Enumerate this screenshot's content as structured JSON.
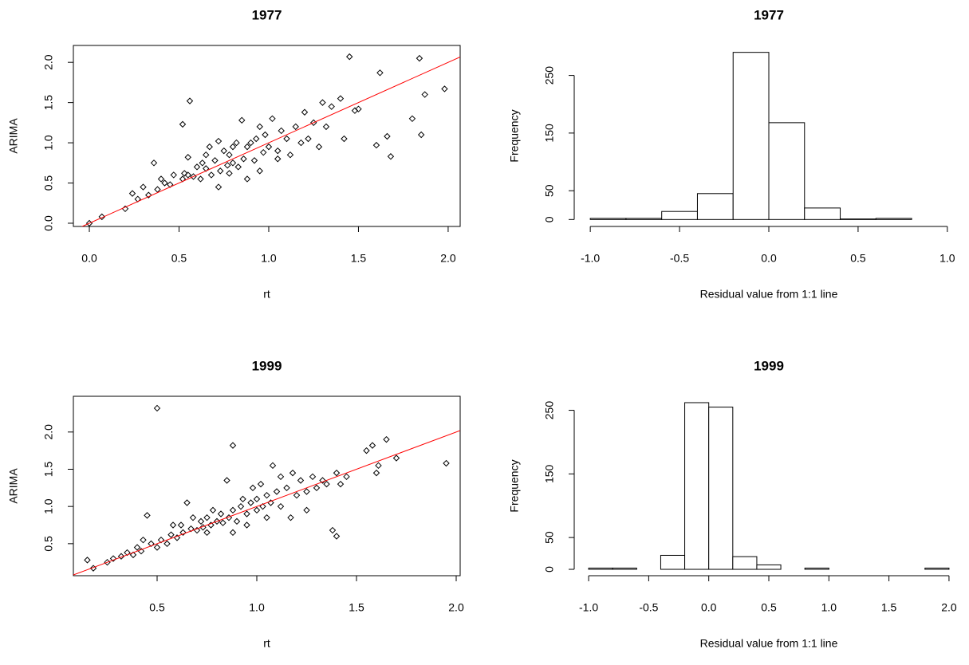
{
  "chart_data": [
    {
      "type": "scatter",
      "title": "1977",
      "xlabel": "rt",
      "ylabel": "ARIMA",
      "color": "#000000",
      "x": [
        0.0,
        0.07,
        0.2,
        0.24,
        0.27,
        0.3,
        0.33,
        0.36,
        0.38,
        0.4,
        0.42,
        0.45,
        0.47,
        0.52,
        0.52,
        0.53,
        0.55,
        0.56,
        0.58,
        0.6,
        0.62,
        0.63,
        0.65,
        0.67,
        0.68,
        0.7,
        0.72,
        0.73,
        0.75,
        0.77,
        0.78,
        0.8,
        0.82,
        0.83,
        0.85,
        0.86,
        0.88,
        0.9,
        0.92,
        0.93,
        0.95,
        0.97,
        0.98,
        1.0,
        1.02,
        1.05,
        1.07,
        1.1,
        1.12,
        1.15,
        1.18,
        1.2,
        1.22,
        1.25,
        1.28,
        1.3,
        1.32,
        1.35,
        1.4,
        1.42,
        1.45,
        1.48,
        1.5,
        1.6,
        1.62,
        1.66,
        1.68,
        1.8,
        1.84,
        1.85,
        1.87,
        1.98,
        0.72,
        0.78,
        0.88,
        0.95,
        1.05,
        0.65,
        0.55,
        0.8
      ],
      "values": [
        0.0,
        0.08,
        0.18,
        0.37,
        0.3,
        0.45,
        0.35,
        0.75,
        0.42,
        0.55,
        0.5,
        0.48,
        0.6,
        1.23,
        0.55,
        0.62,
        0.82,
        1.52,
        0.58,
        0.7,
        0.55,
        0.75,
        0.68,
        0.95,
        0.6,
        0.78,
        1.02,
        0.65,
        0.9,
        0.72,
        0.85,
        0.95,
        1.0,
        0.7,
        1.28,
        0.8,
        0.95,
        1.0,
        0.78,
        1.05,
        1.2,
        0.88,
        1.1,
        0.95,
        1.3,
        0.9,
        1.15,
        1.05,
        0.85,
        1.2,
        1.0,
        1.38,
        1.05,
        1.25,
        0.95,
        1.5,
        1.2,
        1.45,
        1.55,
        1.05,
        2.07,
        1.4,
        1.42,
        0.97,
        1.87,
        1.08,
        0.83,
        1.3,
        2.05,
        1.1,
        1.6,
        1.67,
        0.45,
        0.62,
        0.55,
        0.65,
        0.8,
        0.85,
        0.6,
        0.75
      ],
      "abline": {
        "intercept": 0,
        "slope": 1,
        "color": "#ff0000"
      },
      "xlim": [
        -0.089,
        2.067
      ],
      "ylim": [
        -0.04,
        2.21
      ],
      "xticks": [
        {
          "value": 0,
          "label": "0.0"
        },
        0.5,
        {
          "value": 1,
          "label": "1.0"
        },
        1.5,
        {
          "value": 2,
          "label": "2.0"
        }
      ],
      "yticks": [
        {
          "value": 0,
          "label": "0.0"
        },
        0.5,
        {
          "value": 1,
          "label": "1.0"
        },
        1.5,
        {
          "value": 2,
          "label": "2.0"
        }
      ]
    },
    {
      "type": "histogram",
      "title": "1977",
      "xlabel": "Residual value from 1:1 line",
      "ylabel": "Frequency",
      "bins": [
        -1,
        -0.8,
        -0.6,
        -0.4,
        -0.2,
        0,
        0.2,
        0.4,
        0.6,
        0.8,
        1
      ],
      "values": [
        2,
        2,
        14,
        45,
        290,
        168,
        20,
        1,
        2,
        0
      ],
      "xlim": [
        -1.09,
        1.09
      ],
      "ylim": [
        -12,
        302
      ],
      "xticks": [
        {
          "value": -1,
          "label": "-1.0"
        },
        -0.5,
        {
          "value": 0,
          "label": "0.0"
        },
        0.5,
        {
          "value": 1,
          "label": "1.0"
        }
      ],
      "yticks": [
        0,
        50,
        150,
        250
      ]
    },
    {
      "type": "scatter",
      "title": "1999",
      "xlabel": "rt",
      "ylabel": "ARIMA",
      "color": "#000000",
      "x": [
        0.15,
        0.18,
        0.25,
        0.28,
        0.32,
        0.35,
        0.38,
        0.4,
        0.42,
        0.45,
        0.47,
        0.5,
        0.5,
        0.52,
        0.55,
        0.57,
        0.6,
        0.62,
        0.63,
        0.65,
        0.67,
        0.7,
        0.72,
        0.73,
        0.75,
        0.77,
        0.78,
        0.8,
        0.82,
        0.83,
        0.85,
        0.86,
        0.88,
        0.88,
        0.9,
        0.92,
        0.93,
        0.95,
        0.97,
        0.98,
        1.0,
        1.0,
        1.02,
        1.03,
        1.05,
        1.07,
        1.08,
        1.1,
        1.12,
        1.15,
        1.17,
        1.18,
        1.2,
        1.22,
        1.25,
        1.28,
        1.3,
        1.33,
        1.35,
        1.38,
        1.4,
        1.4,
        1.42,
        1.45,
        1.55,
        1.58,
        1.6,
        1.61,
        1.65,
        1.7,
        1.95,
        0.88,
        0.95,
        0.68,
        1.05,
        0.58,
        0.75,
        1.12,
        1.25,
        0.43
      ],
      "values": [
        0.28,
        0.17,
        0.25,
        0.3,
        0.33,
        0.38,
        0.35,
        0.45,
        0.4,
        0.88,
        0.5,
        2.32,
        0.45,
        0.55,
        0.5,
        0.62,
        0.58,
        0.75,
        0.65,
        1.05,
        0.7,
        0.68,
        0.8,
        0.72,
        0.85,
        0.75,
        0.95,
        0.8,
        0.9,
        0.78,
        1.35,
        0.85,
        1.82,
        0.95,
        0.8,
        1.0,
        1.1,
        0.9,
        1.05,
        1.25,
        0.95,
        1.1,
        1.3,
        1.0,
        1.15,
        1.05,
        1.55,
        1.2,
        1.0,
        1.25,
        0.85,
        1.45,
        1.15,
        1.35,
        1.2,
        1.4,
        1.25,
        1.35,
        1.3,
        0.68,
        0.6,
        1.45,
        1.3,
        1.4,
        1.75,
        1.82,
        1.45,
        1.55,
        1.9,
        1.65,
        1.58,
        0.65,
        0.75,
        0.85,
        0.85,
        0.75,
        0.65,
        1.4,
        0.95,
        0.55
      ],
      "abline": {
        "intercept": 0,
        "slope": 1,
        "color": "#ff0000"
      },
      "xlim": [
        0.08,
        2.02
      ],
      "ylim": [
        0.07,
        2.48
      ],
      "xticks": [
        0.5,
        {
          "value": 1,
          "label": "1.0"
        },
        1.5,
        {
          "value": 2,
          "label": "2.0"
        }
      ],
      "yticks": [
        0.5,
        {
          "value": 1,
          "label": "1.0"
        },
        1.5,
        {
          "value": 2,
          "label": "2.0"
        }
      ]
    },
    {
      "type": "histogram",
      "title": "1999",
      "xlabel": "Residual value from 1:1 line",
      "ylabel": "Frequency",
      "bins": [
        -1,
        -0.8,
        -0.6,
        -0.4,
        -0.2,
        0,
        0.2,
        0.4,
        0.6,
        0.8,
        1,
        1.2,
        1.4,
        1.6,
        1.8,
        2
      ],
      "values": [
        2,
        2,
        0,
        22,
        262,
        255,
        20,
        7,
        0,
        2,
        0,
        0,
        0,
        0,
        2
      ],
      "xlim": [
        -1.12,
        2.12
      ],
      "ylim": [
        -10,
        272
      ],
      "xticks": [
        {
          "value": -1,
          "label": "-1.0"
        },
        -0.5,
        {
          "value": 0,
          "label": "0.0"
        },
        0.5,
        {
          "value": 1,
          "label": "1.0"
        },
        1.5,
        {
          "value": 2,
          "label": "2.0"
        }
      ],
      "yticks": [
        0,
        50,
        150,
        250
      ]
    }
  ]
}
